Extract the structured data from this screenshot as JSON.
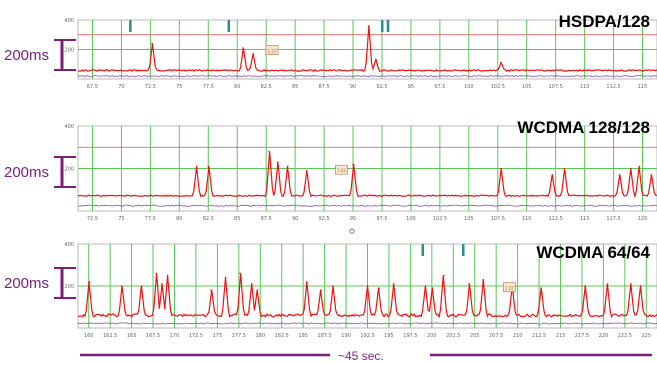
{
  "colors": {
    "trace_primary": "#ee1111",
    "trace_secondary": "#8a4fb0",
    "grid": "#58c858",
    "threshold": "#e84b4b",
    "bracket": "#7a1f7a",
    "marker": "#2a8f8a",
    "axis": "#8a8a8a"
  },
  "bottom": {
    "duration_label": "~45 sec."
  },
  "chart_data": [
    {
      "type": "line",
      "title": "HSDPA/128",
      "scale_label": "200ms",
      "y_ticks": [
        "400",
        "200"
      ],
      "x_ticks": [
        "67.5",
        "70",
        "72.5",
        "75",
        "77.5",
        "80",
        "82.5",
        "85",
        "87.5",
        "90",
        "92.5",
        "95",
        "97.5",
        "100",
        "102.5",
        "105",
        "107.5",
        "110",
        "112.5",
        "115"
      ],
      "baseline": 58,
      "noise": 5,
      "secondary_baseline": 20,
      "spikes": [
        {
          "x": 0.128,
          "y": 240
        },
        {
          "x": 0.285,
          "y": 210
        },
        {
          "x": 0.303,
          "y": 170
        },
        {
          "x": 0.502,
          "y": 360
        },
        {
          "x": 0.515,
          "y": 130
        },
        {
          "x": 0.73,
          "y": 110
        }
      ],
      "threshold": 300,
      "markers": [
        0.09,
        0.26,
        0.525,
        0.535
      ],
      "callout": {
        "x": 0.335,
        "text": "1:22"
      },
      "ylim": [
        0,
        400
      ]
    },
    {
      "type": "line",
      "title": "WCDMA 128/128",
      "scale_label": "200ms",
      "y_ticks": [
        "400",
        "200"
      ],
      "x_ticks": [
        "72.5",
        "75",
        "77.5",
        "80",
        "82.5",
        "85",
        "87.5",
        "90",
        "92.5",
        "95",
        "97.5",
        "100",
        "102.5",
        "105",
        "107.5",
        "110",
        "112.5",
        "115",
        "117.5",
        "120"
      ],
      "baseline": 72,
      "noise": 3,
      "secondary_baseline": 25,
      "spikes": [
        {
          "x": 0.205,
          "y": 210
        },
        {
          "x": 0.225,
          "y": 210
        },
        {
          "x": 0.33,
          "y": 280
        },
        {
          "x": 0.345,
          "y": 230
        },
        {
          "x": 0.362,
          "y": 210
        },
        {
          "x": 0.395,
          "y": 190
        },
        {
          "x": 0.475,
          "y": 220
        },
        {
          "x": 0.73,
          "y": 200
        },
        {
          "x": 0.82,
          "y": 170
        },
        {
          "x": 0.84,
          "y": 200
        },
        {
          "x": 0.935,
          "y": 170
        },
        {
          "x": 0.955,
          "y": 200
        },
        {
          "x": 0.97,
          "y": 210
        },
        {
          "x": 0.99,
          "y": 170
        }
      ],
      "threshold": 300,
      "markers": [],
      "callout": {
        "x": 0.455,
        "text": "1:22"
      },
      "ylim": [
        0,
        400
      ]
    },
    {
      "type": "line",
      "title": "WCDMA 64/64",
      "scale_label": "200ms",
      "y_ticks": [
        "400",
        "200"
      ],
      "x_ticks": [
        "160",
        "162.5",
        "165",
        "167.5",
        "170",
        "172.5",
        "175",
        "177.5",
        "180",
        "182.5",
        "185",
        "187.5",
        "190",
        "192.5",
        "195",
        "197.5",
        "200",
        "202.5",
        "205",
        "207.5",
        "210",
        "212.5",
        "215",
        "217.5",
        "220",
        "222.5",
        "225"
      ],
      "baseline": 60,
      "noise": 7,
      "secondary_baseline": 22,
      "spikes": [
        {
          "x": 0.02,
          "y": 220
        },
        {
          "x": 0.075,
          "y": 200
        },
        {
          "x": 0.11,
          "y": 200
        },
        {
          "x": 0.135,
          "y": 260
        },
        {
          "x": 0.145,
          "y": 210
        },
        {
          "x": 0.155,
          "y": 250
        },
        {
          "x": 0.23,
          "y": 180
        },
        {
          "x": 0.255,
          "y": 240
        },
        {
          "x": 0.28,
          "y": 260
        },
        {
          "x": 0.3,
          "y": 210
        },
        {
          "x": 0.31,
          "y": 180
        },
        {
          "x": 0.395,
          "y": 220
        },
        {
          "x": 0.42,
          "y": 180
        },
        {
          "x": 0.44,
          "y": 200
        },
        {
          "x": 0.5,
          "y": 200
        },
        {
          "x": 0.52,
          "y": 190
        },
        {
          "x": 0.545,
          "y": 210
        },
        {
          "x": 0.6,
          "y": 200
        },
        {
          "x": 0.612,
          "y": 190
        },
        {
          "x": 0.632,
          "y": 250
        },
        {
          "x": 0.675,
          "y": 210
        },
        {
          "x": 0.7,
          "y": 230
        },
        {
          "x": 0.75,
          "y": 200
        },
        {
          "x": 0.8,
          "y": 190
        },
        {
          "x": 0.875,
          "y": 200
        },
        {
          "x": 0.915,
          "y": 210
        },
        {
          "x": 0.955,
          "y": 210
        },
        {
          "x": 0.972,
          "y": 200
        }
      ],
      "threshold": null,
      "markers": [
        0.595,
        0.665
      ],
      "callout": {
        "x": 0.745,
        "text": "1:22"
      },
      "ylim": [
        0,
        400
      ]
    }
  ]
}
